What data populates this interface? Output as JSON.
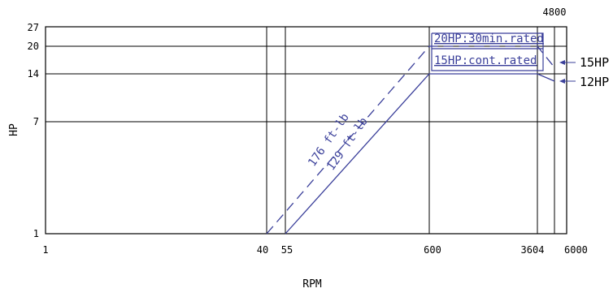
{
  "colors": {
    "grid": "#000000",
    "curve": "#3a3f9a",
    "text": "#000000"
  },
  "chart_data": {
    "type": "line",
    "title": "",
    "xlabel": "RPM",
    "ylabel": "HP",
    "grid": true,
    "x_ticks": [
      {
        "label": "1"
      },
      {
        "label": "40"
      },
      {
        "label": "55"
      },
      {
        "label": "600"
      },
      {
        "label": "3604"
      },
      {
        "label": "6000"
      }
    ],
    "x_extra_ticks": [
      {
        "label": "4800"
      }
    ],
    "y_ticks": [
      {
        "label": "1"
      },
      {
        "label": "7"
      },
      {
        "label": "14"
      },
      {
        "label": "20"
      },
      {
        "label": "27"
      }
    ],
    "series": [
      {
        "name": "176 ft-lb",
        "style": "dashed",
        "points": [
          [
            40,
            1
          ],
          [
            600,
            20
          ],
          [
            3604,
            20
          ],
          [
            4800,
            15
          ]
        ]
      },
      {
        "name": "129 ft-lb",
        "style": "solid",
        "points": [
          [
            55,
            1
          ],
          [
            600,
            14
          ],
          [
            3604,
            14
          ],
          [
            4800,
            12
          ]
        ]
      }
    ],
    "annotations": {
      "rated_30min": "20HP:30min.rated",
      "rated_cont": "15HP:cont.rated",
      "right_15": "15HP",
      "right_12": "12HP"
    }
  }
}
